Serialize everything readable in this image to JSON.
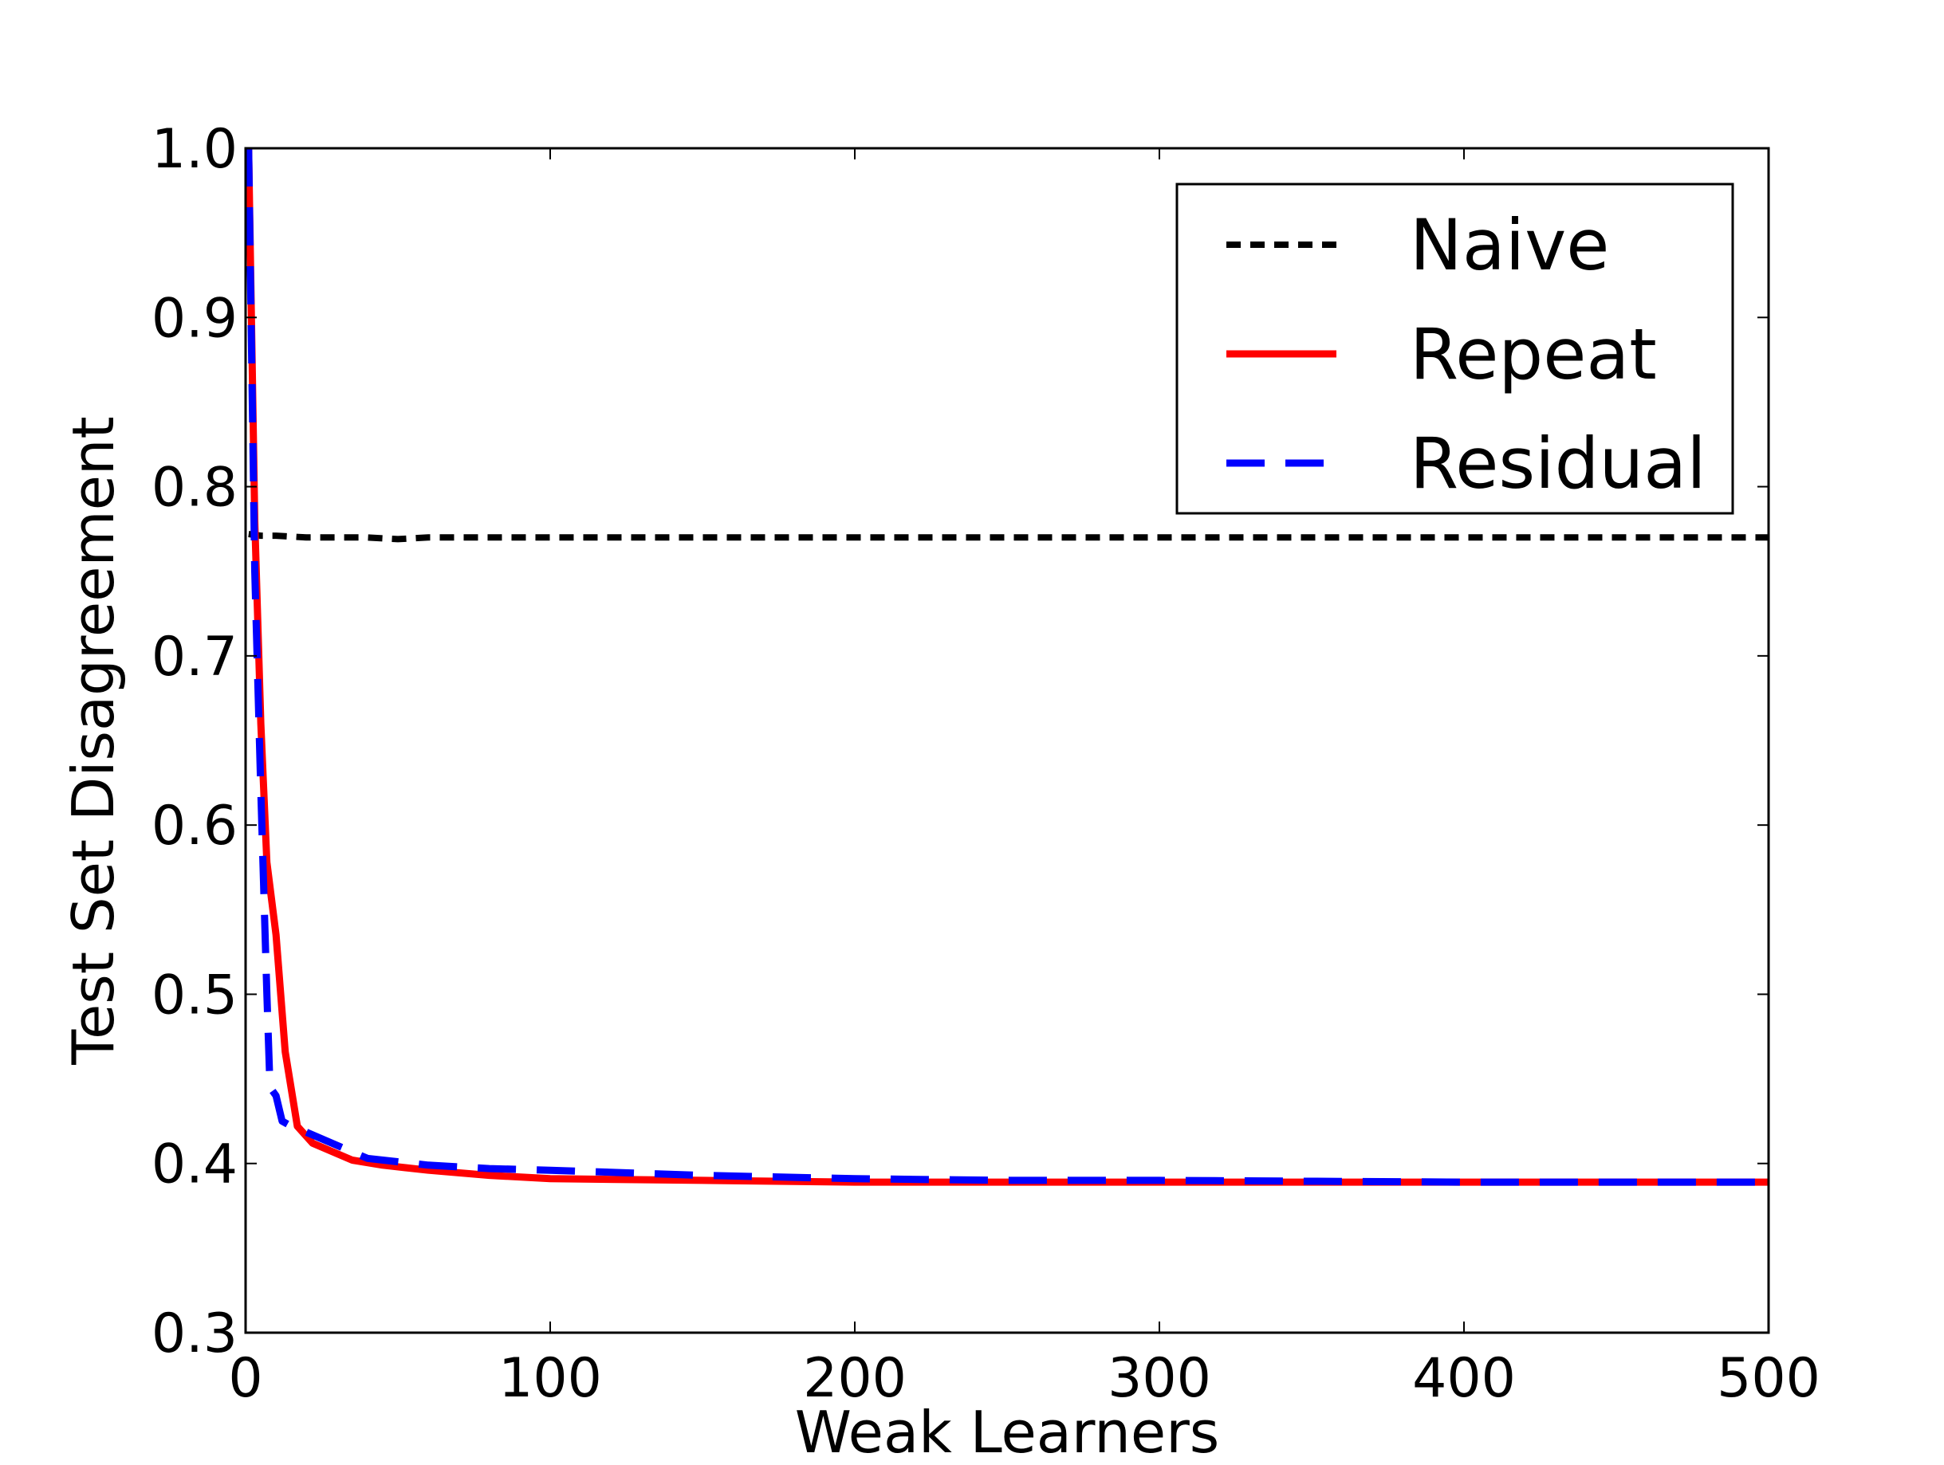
{
  "chart_data": {
    "type": "line",
    "title": "",
    "xlabel": "Weak Learners",
    "ylabel": "Test Set Disagreement",
    "xlim": [
      0,
      500
    ],
    "ylim": [
      0.3,
      1.0
    ],
    "xticks": [
      0,
      100,
      200,
      300,
      400,
      500
    ],
    "xtick_labels": [
      "0",
      "100",
      "200",
      "300",
      "400",
      "500"
    ],
    "yticks": [
      0.3,
      0.4,
      0.5,
      0.6,
      0.7,
      0.8,
      0.9,
      1.0
    ],
    "ytick_labels": [
      "0.3",
      "0.4",
      "0.5",
      "0.6",
      "0.7",
      "0.8",
      "0.9",
      "1.0"
    ],
    "grid": false,
    "legend_position": "top-right",
    "series": [
      {
        "name": "Naive",
        "color": "#000000",
        "style": "dotted",
        "x": [
          1,
          5,
          10,
          20,
          30,
          40,
          50,
          60,
          80,
          100,
          150,
          200,
          300,
          400,
          500
        ],
        "y": [
          0.772,
          0.771,
          0.771,
          0.77,
          0.77,
          0.77,
          0.769,
          0.77,
          0.77,
          0.77,
          0.77,
          0.77,
          0.77,
          0.77,
          0.77
        ]
      },
      {
        "name": "Repeat",
        "color": "#ff0000",
        "style": "solid",
        "x": [
          1,
          3,
          5,
          7,
          10,
          13,
          17,
          22,
          35,
          45,
          60,
          80,
          100,
          150,
          200,
          250,
          300,
          400,
          500
        ],
        "y": [
          1.0,
          0.78,
          0.66,
          0.578,
          0.535,
          0.466,
          0.422,
          0.412,
          0.402,
          0.399,
          0.396,
          0.393,
          0.391,
          0.39,
          0.389,
          0.389,
          0.389,
          0.389,
          0.389
        ]
      },
      {
        "name": "Residual",
        "color": "#0000ff",
        "style": "dashed",
        "x": [
          1,
          3,
          5,
          7,
          8,
          10,
          12,
          15,
          18,
          40,
          60,
          80,
          100,
          150,
          200,
          250,
          300,
          400,
          500
        ],
        "y": [
          1.0,
          0.75,
          0.62,
          0.5,
          0.445,
          0.44,
          0.425,
          0.422,
          0.42,
          0.403,
          0.399,
          0.397,
          0.396,
          0.393,
          0.391,
          0.39,
          0.39,
          0.389,
          0.389
        ]
      }
    ]
  }
}
